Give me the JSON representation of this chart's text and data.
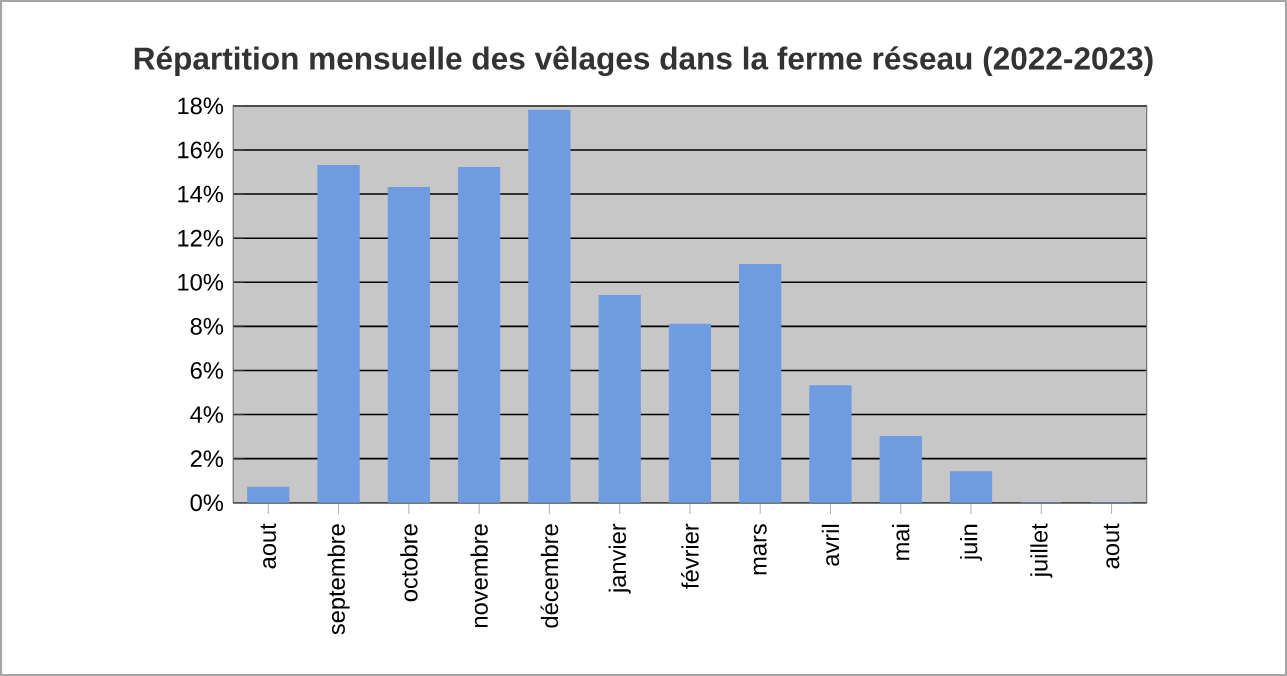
{
  "chart_data": {
    "type": "bar",
    "title": "Répartition mensuelle des vêlages dans la ferme réseau (2022-2023)",
    "categories": [
      "aout",
      "septembre",
      "octobre",
      "novembre",
      "décembre",
      "janvier",
      "février",
      "mars",
      "avril",
      "mai",
      "juin",
      "juillet",
      "aout"
    ],
    "values": [
      0.7,
      15.3,
      14.3,
      15.2,
      17.8,
      9.4,
      8.1,
      10.8,
      5.3,
      3.0,
      1.4,
      0,
      0
    ],
    "color": "#6f9be0",
    "ylim": [
      0,
      18
    ],
    "yticks": [
      {
        "value": 0,
        "label": "0%"
      },
      {
        "value": 2,
        "label": "2%"
      },
      {
        "value": 4,
        "label": "4%"
      },
      {
        "value": 6,
        "label": "6%"
      },
      {
        "value": 8,
        "label": "8%"
      },
      {
        "value": 10,
        "label": "10%"
      },
      {
        "value": 12,
        "label": "12%"
      },
      {
        "value": 14,
        "label": "14%"
      },
      {
        "value": 16,
        "label": "16%"
      },
      {
        "value": 18,
        "label": "18%"
      }
    ],
    "grid": "y"
  }
}
